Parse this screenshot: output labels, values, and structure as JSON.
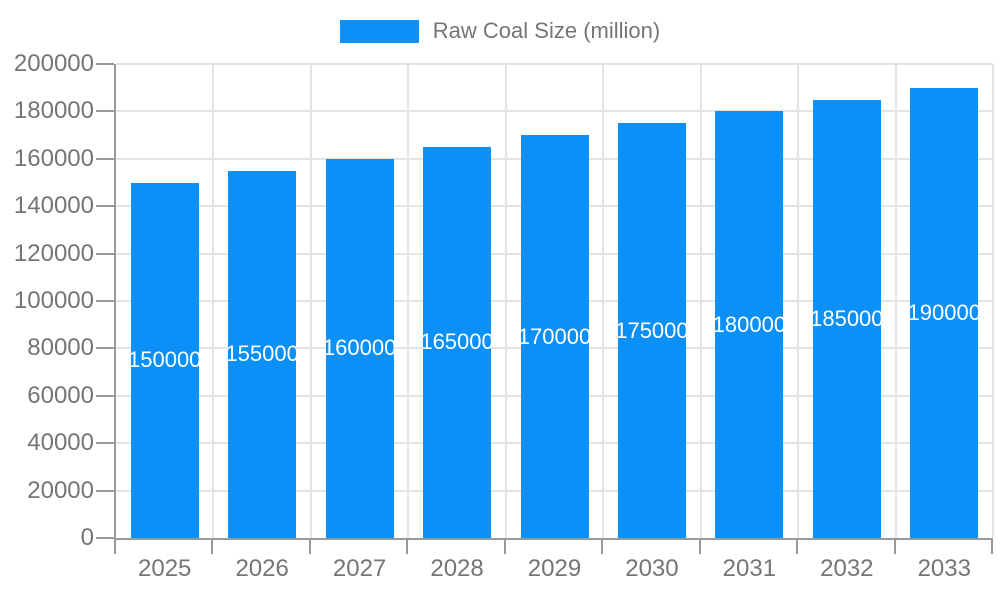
{
  "chart_data": {
    "type": "bar",
    "title": "",
    "legend": {
      "label": "Raw Coal Size (million)",
      "position": "top"
    },
    "categories": [
      "2025",
      "2026",
      "2027",
      "2028",
      "2029",
      "2030",
      "2031",
      "2032",
      "2033"
    ],
    "values": [
      150000,
      155000,
      160000,
      165000,
      170000,
      175000,
      180000,
      185000,
      190000
    ],
    "bar_value_labels": [
      "150000",
      "155000",
      "160000",
      "165000",
      "170000",
      "175000",
      "180000",
      "185000",
      "190000"
    ],
    "ylim": [
      0,
      200000
    ],
    "ytick_step": 20000,
    "yticks": [
      0,
      20000,
      40000,
      60000,
      80000,
      100000,
      120000,
      140000,
      160000,
      180000,
      200000
    ],
    "ytick_labels": [
      "0",
      "20000",
      "40000",
      "60000",
      "80000",
      "100000",
      "120000",
      "140000",
      "160000",
      "180000",
      "200000"
    ],
    "grid": true,
    "colors": {
      "bar": "#0B90F8",
      "grid": "#E3E3E3",
      "axis": "#999999",
      "tick_label": "#757575",
      "bar_label": "#FFFFFF",
      "background": "#FFFFFF"
    }
  }
}
